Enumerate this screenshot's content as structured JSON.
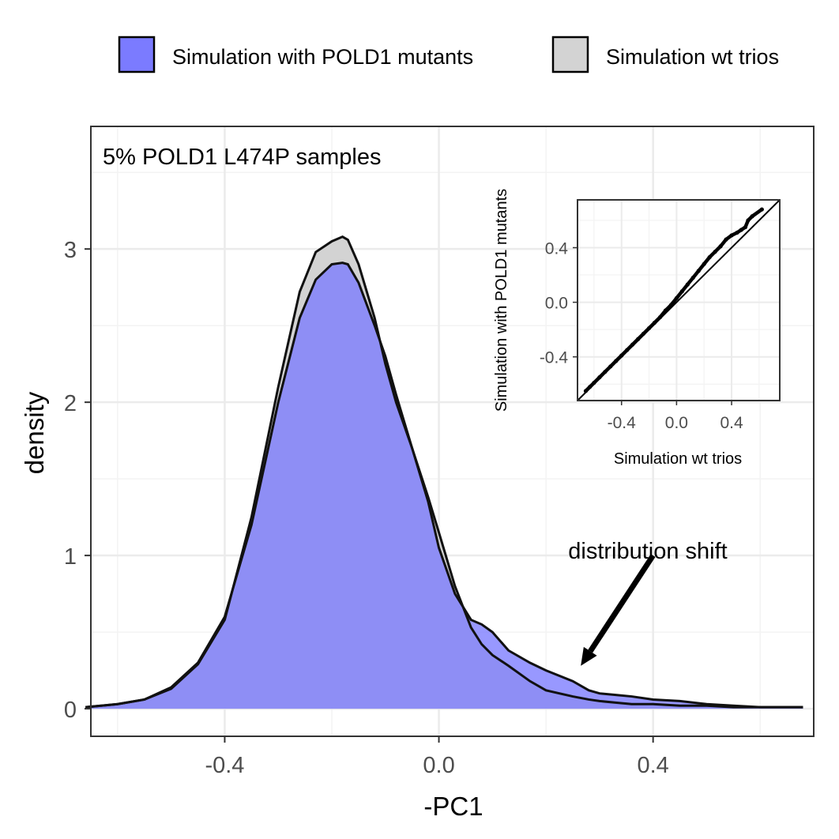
{
  "chart_data": [
    {
      "type": "area",
      "title": "5% POLD1 L474P samples",
      "xlabel": "-PC1",
      "ylabel": "density",
      "xlim": [
        -0.65,
        0.7
      ],
      "ylim": [
        -0.18,
        3.8
      ],
      "x_ticks": [
        -0.4,
        0.0,
        0.4
      ],
      "x_tick_labels": [
        "-0.4",
        "0.0",
        "0.4"
      ],
      "y_ticks": [
        0,
        1,
        2,
        3
      ],
      "y_tick_labels": [
        "0",
        "1",
        "2",
        "3"
      ],
      "grid": true,
      "legend_position": "top",
      "series": [
        {
          "name": "Simulation with POLD1 mutants",
          "color": "#7b7bff",
          "x": [
            -0.66,
            -0.6,
            -0.55,
            -0.5,
            -0.45,
            -0.4,
            -0.35,
            -0.3,
            -0.26,
            -0.23,
            -0.2,
            -0.18,
            -0.17,
            -0.15,
            -0.12,
            -0.1,
            -0.08,
            -0.05,
            -0.02,
            0.0,
            0.03,
            0.06,
            0.08,
            0.1,
            0.13,
            0.17,
            0.2,
            0.25,
            0.28,
            0.3,
            0.33,
            0.36,
            0.4,
            0.45,
            0.5,
            0.55,
            0.6,
            0.68
          ],
          "y": [
            0.01,
            0.03,
            0.06,
            0.14,
            0.3,
            0.6,
            1.2,
            2.0,
            2.55,
            2.8,
            2.9,
            2.91,
            2.9,
            2.78,
            2.5,
            2.3,
            2.05,
            1.7,
            1.35,
            1.05,
            0.75,
            0.58,
            0.55,
            0.5,
            0.38,
            0.3,
            0.25,
            0.18,
            0.12,
            0.1,
            0.09,
            0.08,
            0.06,
            0.05,
            0.03,
            0.02,
            0.01,
            0.01
          ]
        },
        {
          "name": "Simulation wt trios",
          "color": "#d3d3d3",
          "x": [
            -0.66,
            -0.6,
            -0.55,
            -0.5,
            -0.45,
            -0.4,
            -0.35,
            -0.3,
            -0.26,
            -0.23,
            -0.2,
            -0.18,
            -0.17,
            -0.15,
            -0.12,
            -0.1,
            -0.08,
            -0.05,
            -0.02,
            0.0,
            0.03,
            0.06,
            0.08,
            0.1,
            0.13,
            0.17,
            0.2,
            0.25,
            0.28,
            0.3,
            0.33,
            0.36,
            0.4,
            0.45,
            0.5,
            0.55,
            0.6,
            0.68
          ],
          "y": [
            0.01,
            0.03,
            0.06,
            0.13,
            0.29,
            0.58,
            1.25,
            2.1,
            2.72,
            2.98,
            3.05,
            3.08,
            3.06,
            2.9,
            2.55,
            2.25,
            2.0,
            1.7,
            1.38,
            1.15,
            0.8,
            0.53,
            0.42,
            0.35,
            0.28,
            0.18,
            0.12,
            0.08,
            0.06,
            0.05,
            0.04,
            0.03,
            0.03,
            0.02,
            0.02,
            0.01,
            0.01,
            0.01
          ]
        }
      ],
      "annotations": [
        {
          "text": "distribution shift",
          "x": 0.4,
          "y": 1.08
        },
        {
          "arrow_from": [
            0.4,
            1.0
          ],
          "arrow_to": [
            0.265,
            0.28
          ]
        }
      ]
    },
    {
      "type": "scatter",
      "title": "",
      "xlabel": "Simulation wt trios",
      "ylabel": "Simulation with POLD1 mutants",
      "xlim": [
        -0.72,
        0.75
      ],
      "ylim": [
        -0.72,
        0.75
      ],
      "x_ticks": [
        -0.4,
        0.0,
        0.4
      ],
      "x_tick_labels": [
        "-0.4",
        "0.0",
        "0.4"
      ],
      "y_ticks": [
        -0.4,
        0.0,
        0.4
      ],
      "y_tick_labels": [
        "-0.4",
        "0.0",
        "0.4"
      ],
      "grid": true,
      "reference_line": "y = x",
      "series": [
        {
          "name": "",
          "x": [
            -0.66,
            -0.63,
            -0.6,
            -0.56,
            -0.52,
            -0.48,
            -0.44,
            -0.4,
            -0.36,
            -0.32,
            -0.28,
            -0.24,
            -0.2,
            -0.16,
            -0.12,
            -0.08,
            -0.04,
            0.0,
            0.04,
            0.08,
            0.12,
            0.16,
            0.2,
            0.24,
            0.28,
            0.32,
            0.36,
            0.4,
            0.44,
            0.47,
            0.5,
            0.52,
            0.55,
            0.62
          ],
          "y": [
            -0.65,
            -0.62,
            -0.59,
            -0.55,
            -0.51,
            -0.47,
            -0.43,
            -0.39,
            -0.35,
            -0.31,
            -0.27,
            -0.23,
            -0.19,
            -0.15,
            -0.11,
            -0.06,
            -0.02,
            0.03,
            0.08,
            0.13,
            0.18,
            0.23,
            0.28,
            0.33,
            0.37,
            0.41,
            0.46,
            0.49,
            0.51,
            0.53,
            0.55,
            0.6,
            0.63,
            0.68
          ]
        }
      ]
    }
  ]
}
